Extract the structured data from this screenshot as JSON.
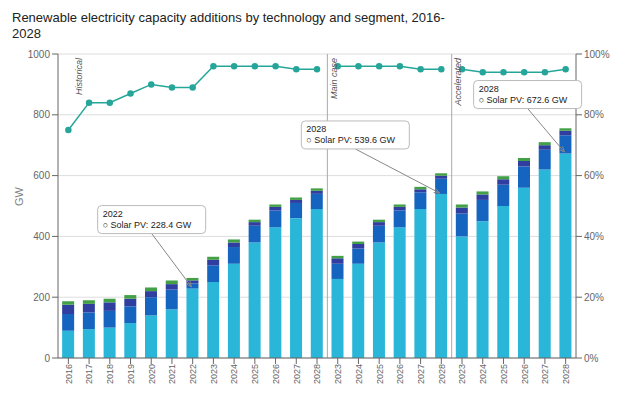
{
  "chart_data": {
    "type": "bar",
    "title": "Renewable electricity capacity additions by technology and segment, 2016-\n2028",
    "stacked": true,
    "grid": true,
    "ylabel": "GW",
    "categories": [
      "2016",
      "2017",
      "2018",
      "2019",
      "2020",
      "2021",
      "2022",
      "2023",
      "2024",
      "2025",
      "2026",
      "2027",
      "2028",
      "2023",
      "2024",
      "2025",
      "2026",
      "2027",
      "2028",
      "2023",
      "2024",
      "2025",
      "2026",
      "2027",
      "2028"
    ],
    "ylim": [
      0,
      1000
    ],
    "yticks": [
      0,
      200,
      400,
      600,
      800,
      1000
    ],
    "y2lim": [
      0,
      100
    ],
    "y2ticks": [
      {
        "value": 0,
        "label": "0%"
      },
      {
        "value": 20,
        "label": "20%"
      },
      {
        "value": 40,
        "label": "40%"
      },
      {
        "value": 60,
        "label": "60%"
      },
      {
        "value": 80,
        "label": "80%"
      },
      {
        "value": 100,
        "label": "100%"
      }
    ],
    "sections": [
      {
        "label": "Historical",
        "from": 0,
        "to": 12
      },
      {
        "label": "Main case",
        "from": 13,
        "to": 18
      },
      {
        "label": "Accelerated",
        "from": 19,
        "to": 24
      }
    ],
    "annotations": [
      {
        "text": "2022\n○ Solar PV: 228.4 GW",
        "index": 6,
        "y": 228.4
      },
      {
        "text": "2028\n○ Solar PV: 539.6 GW",
        "index": 18,
        "y": 539.6
      },
      {
        "text": "2028\n○ Solar PV: 672.6 GW",
        "index": 24,
        "y": 672.6
      }
    ],
    "series": [
      {
        "type": "bar",
        "color": "#29B6D8",
        "values": [
          90,
          95,
          100,
          115,
          140,
          160,
          228.4,
          250,
          310,
          380,
          430,
          460,
          490,
          260,
          310,
          380,
          430,
          490,
          539.6,
          400,
          450,
          500,
          560,
          620,
          672.6
        ]
      },
      {
        "type": "bar",
        "color": "#1565C0",
        "values": [
          55,
          55,
          55,
          55,
          60,
          65,
          17,
          55,
          55,
          55,
          55,
          50,
          50,
          50,
          50,
          55,
          55,
          55,
          50,
          75,
          70,
          70,
          70,
          65,
          60
        ]
      },
      {
        "type": "bar",
        "color": "#303F9F",
        "values": [
          30,
          28,
          28,
          25,
          20,
          18,
          10,
          18,
          15,
          12,
          12,
          10,
          10,
          18,
          15,
          12,
          12,
          10,
          10,
          20,
          18,
          18,
          18,
          15,
          15
        ]
      },
      {
        "type": "bar",
        "color": "#43A047",
        "values": [
          12,
          12,
          12,
          12,
          12,
          12,
          8,
          10,
          10,
          8,
          8,
          8,
          8,
          8,
          8,
          8,
          8,
          8,
          8,
          10,
          10,
          10,
          10,
          10,
          8
        ]
      },
      {
        "type": "line",
        "axis": "y2",
        "color": "#26A69A",
        "marker": "o",
        "values": [
          75,
          84,
          84,
          87,
          90,
          89,
          89,
          96,
          96,
          96,
          96,
          95,
          95,
          96,
          96,
          96,
          96,
          95,
          95,
          95,
          94,
          94,
          94,
          94,
          95
        ]
      }
    ]
  }
}
